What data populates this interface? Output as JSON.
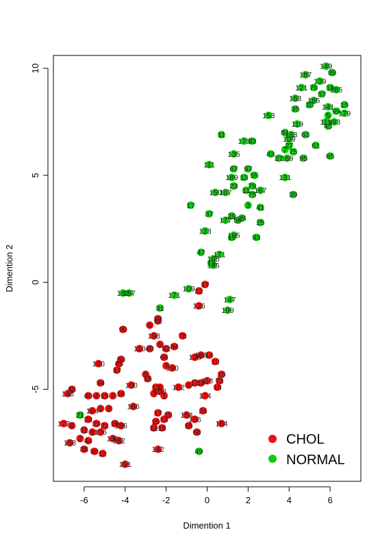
{
  "chart_data": {
    "type": "scatter",
    "title": "",
    "xlabel": "Dimention 1",
    "ylabel": "Dimention 2",
    "xlim": [
      -7.5,
      7.5
    ],
    "ylim": [
      -9.3,
      10.6
    ],
    "xticks": [
      -6,
      -4,
      -2,
      0,
      2,
      4,
      6
    ],
    "yticks": [
      -5,
      0,
      5,
      10
    ],
    "grid": false,
    "legend_position": "bottom-right",
    "series": [
      {
        "name": "CHOL",
        "color": "#ee1111",
        "points": [
          {
            "x": -6.6,
            "y": -5.0,
            "label": "45"
          },
          {
            "x": -6.8,
            "y": -5.2,
            "label": "148"
          },
          {
            "x": -5.8,
            "y": -5.3,
            "label": "40"
          },
          {
            "x": -5.4,
            "y": -5.3,
            "label": "4"
          },
          {
            "x": -5.2,
            "y": -4.7,
            "label": "94"
          },
          {
            "x": -5.0,
            "y": -5.3,
            "label": "15"
          },
          {
            "x": -4.6,
            "y": -5.3,
            "label": "2"
          },
          {
            "x": -4.2,
            "y": -5.2,
            "label": "16"
          },
          {
            "x": -3.7,
            "y": -4.8,
            "label": "100"
          },
          {
            "x": -3.0,
            "y": -4.3,
            "label": "5"
          },
          {
            "x": -2.9,
            "y": -4.5,
            "label": "15"
          },
          {
            "x": -5.6,
            "y": -6.0,
            "label": "104"
          },
          {
            "x": -5.2,
            "y": -5.9,
            "label": "1"
          },
          {
            "x": -4.8,
            "y": -5.9,
            "label": "3"
          },
          {
            "x": -6.2,
            "y": -6.2,
            "label": "21"
          },
          {
            "x": -5.8,
            "y": -6.4,
            "label": "28"
          },
          {
            "x": -5.4,
            "y": -6.6,
            "label": "29"
          },
          {
            "x": -5.0,
            "y": -6.7,
            "label": "21"
          },
          {
            "x": -4.5,
            "y": -6.6,
            "label": "16"
          },
          {
            "x": -4.2,
            "y": -6.7,
            "label": "186"
          },
          {
            "x": -7.0,
            "y": -6.6,
            "label": "172"
          },
          {
            "x": -6.6,
            "y": -6.7,
            "label": "8"
          },
          {
            "x": -6.0,
            "y": -6.9,
            "label": "11"
          },
          {
            "x": -5.6,
            "y": -7.0,
            "label": "8"
          },
          {
            "x": -5.2,
            "y": -7.0,
            "label": "176"
          },
          {
            "x": -6.7,
            "y": -7.5,
            "label": "158"
          },
          {
            "x": -6.2,
            "y": -7.3,
            "label": "2"
          },
          {
            "x": -5.8,
            "y": -7.4,
            "label": "44"
          },
          {
            "x": -6.0,
            "y": -7.8,
            "label": "38"
          },
          {
            "x": -5.5,
            "y": -7.9,
            "label": "98"
          },
          {
            "x": -5.1,
            "y": -8.0,
            "label": "12"
          },
          {
            "x": -4.3,
            "y": -7.4,
            "label": "132"
          },
          {
            "x": -4.6,
            "y": -7.3,
            "label": "130"
          },
          {
            "x": -4.0,
            "y": -8.5,
            "label": "191"
          },
          {
            "x": -3.6,
            "y": -5.8,
            "label": "166"
          },
          {
            "x": -2.6,
            "y": -5.2,
            "label": "7"
          },
          {
            "x": -2.3,
            "y": -5.1,
            "label": "108"
          },
          {
            "x": -2.1,
            "y": -5.3,
            "label": "1"
          },
          {
            "x": -2.5,
            "y": -4.9,
            "label": "13"
          },
          {
            "x": -2.3,
            "y": -4.9,
            "label": "5"
          },
          {
            "x": -1.4,
            "y": -4.9,
            "label": "182"
          },
          {
            "x": -0.9,
            "y": -4.8,
            "label": "8"
          },
          {
            "x": -0.6,
            "y": -4.7,
            "label": "17"
          },
          {
            "x": -0.3,
            "y": -4.7,
            "label": "18"
          },
          {
            "x": 0.0,
            "y": -4.6,
            "label": "118"
          },
          {
            "x": 0.6,
            "y": -4.6,
            "label": "73"
          },
          {
            "x": 0.7,
            "y": -4.3,
            "label": "15"
          },
          {
            "x": 0.5,
            "y": -4.9,
            "label": "10"
          },
          {
            "x": -0.1,
            "y": -5.3,
            "label": "174"
          },
          {
            "x": -5.3,
            "y": -3.8,
            "label": "180"
          },
          {
            "x": -4.2,
            "y": -3.6,
            "label": "50"
          },
          {
            "x": -4.3,
            "y": -3.8,
            "label": "45"
          },
          {
            "x": -4.4,
            "y": -4.1,
            "label": "17"
          },
          {
            "x": -3.3,
            "y": -3.1,
            "label": "110"
          },
          {
            "x": -2.8,
            "y": -3.1,
            "label": "40"
          },
          {
            "x": -2.3,
            "y": -2.9,
            "label": "5"
          },
          {
            "x": -2.0,
            "y": -3.1,
            "label": "82"
          },
          {
            "x": -1.6,
            "y": -3.0,
            "label": "84"
          },
          {
            "x": -2.1,
            "y": -3.5,
            "label": "66"
          },
          {
            "x": -2.0,
            "y": -3.9,
            "label": "7"
          },
          {
            "x": -1.7,
            "y": -4.0,
            "label": "190"
          },
          {
            "x": -1.2,
            "y": -2.5,
            "label": "78"
          },
          {
            "x": -0.3,
            "y": -3.4,
            "label": "188"
          },
          {
            "x": -0.6,
            "y": -3.5,
            "label": "128"
          },
          {
            "x": 0.1,
            "y": -3.4,
            "label": "14"
          },
          {
            "x": 0.4,
            "y": -3.7,
            "label": "12"
          },
          {
            "x": -4.1,
            "y": -2.2,
            "label": "90"
          },
          {
            "x": -2.8,
            "y": -2.0,
            "label": "6"
          },
          {
            "x": -2.4,
            "y": -1.7,
            "label": "32"
          },
          {
            "x": -2.6,
            "y": -2.5,
            "label": "198"
          },
          {
            "x": -2.4,
            "y": -1.8,
            "label": "12"
          },
          {
            "x": -0.4,
            "y": -1.1,
            "label": "126"
          },
          {
            "x": -0.1,
            "y": -0.1,
            "label": "17"
          },
          {
            "x": -0.4,
            "y": -0.4,
            "label": "12"
          },
          {
            "x": -2.4,
            "y": -6.1,
            "label": "17"
          },
          {
            "x": -2.5,
            "y": -6.5,
            "label": "19"
          },
          {
            "x": -2.1,
            "y": -6.4,
            "label": "13"
          },
          {
            "x": -1.9,
            "y": -6.2,
            "label": "15"
          },
          {
            "x": -2.6,
            "y": -6.8,
            "label": "12"
          },
          {
            "x": -2.2,
            "y": -6.8,
            "label": "18"
          },
          {
            "x": -1.0,
            "y": -6.2,
            "label": "154"
          },
          {
            "x": -0.6,
            "y": -6.4,
            "label": "106"
          },
          {
            "x": -0.2,
            "y": -6.0,
            "label": "24"
          },
          {
            "x": -0.9,
            "y": -6.7,
            "label": "16"
          },
          {
            "x": -0.5,
            "y": -7.0,
            "label": "68"
          },
          {
            "x": 0.7,
            "y": -6.6,
            "label": "164"
          },
          {
            "x": -2.4,
            "y": -7.8,
            "label": "142"
          }
        ]
      },
      {
        "name": "NORMAL",
        "color": "#11cc11",
        "points": [
          {
            "x": 5.8,
            "y": 10.1,
            "label": "149"
          },
          {
            "x": 6.1,
            "y": 9.8,
            "label": "89"
          },
          {
            "x": 4.8,
            "y": 9.7,
            "label": "187"
          },
          {
            "x": 5.5,
            "y": 9.4,
            "label": "139"
          },
          {
            "x": 4.6,
            "y": 9.1,
            "label": "121"
          },
          {
            "x": 5.2,
            "y": 9.1,
            "label": "79"
          },
          {
            "x": 6.0,
            "y": 9.1,
            "label": "18"
          },
          {
            "x": 6.3,
            "y": 9.0,
            "label": "185"
          },
          {
            "x": 5.6,
            "y": 8.8,
            "label": "57"
          },
          {
            "x": 4.3,
            "y": 8.6,
            "label": "163"
          },
          {
            "x": 5.2,
            "y": 8.5,
            "label": "185"
          },
          {
            "x": 5.0,
            "y": 8.3,
            "label": "10"
          },
          {
            "x": 5.9,
            "y": 8.2,
            "label": "141"
          },
          {
            "x": 6.7,
            "y": 8.3,
            "label": "19"
          },
          {
            "x": 6.3,
            "y": 8.0,
            "label": "99"
          },
          {
            "x": 6.7,
            "y": 7.9,
            "label": "179"
          },
          {
            "x": 4.3,
            "y": 8.1,
            "label": "35"
          },
          {
            "x": 5.9,
            "y": 7.8,
            "label": "5"
          },
          {
            "x": 5.8,
            "y": 7.5,
            "label": "119"
          },
          {
            "x": 6.2,
            "y": 7.5,
            "label": "193"
          },
          {
            "x": 5.9,
            "y": 7.3,
            "label": "45"
          },
          {
            "x": 3.0,
            "y": 7.8,
            "label": "153"
          },
          {
            "x": 4.4,
            "y": 7.4,
            "label": "119"
          },
          {
            "x": 3.8,
            "y": 7.0,
            "label": "81"
          },
          {
            "x": 4.1,
            "y": 6.9,
            "label": "183"
          },
          {
            "x": 4.8,
            "y": 6.9,
            "label": "63"
          },
          {
            "x": 4.0,
            "y": 6.7,
            "label": "109"
          },
          {
            "x": 4.0,
            "y": 6.4,
            "label": "27"
          },
          {
            "x": 5.3,
            "y": 6.4,
            "label": "61"
          },
          {
            "x": 3.8,
            "y": 6.2,
            "label": "7"
          },
          {
            "x": 4.2,
            "y": 6.1,
            "label": "75"
          },
          {
            "x": 3.1,
            "y": 6.0,
            "label": "43"
          },
          {
            "x": 3.5,
            "y": 5.8,
            "label": "27"
          },
          {
            "x": 3.9,
            "y": 5.8,
            "label": "169"
          },
          {
            "x": 4.7,
            "y": 5.8,
            "label": "95"
          },
          {
            "x": 6.0,
            "y": 5.9,
            "label": "65"
          },
          {
            "x": 0.7,
            "y": 6.9,
            "label": "11"
          },
          {
            "x": 1.8,
            "y": 6.6,
            "label": "173"
          },
          {
            "x": 2.2,
            "y": 6.6,
            "label": "83"
          },
          {
            "x": 1.3,
            "y": 6.0,
            "label": "135"
          },
          {
            "x": 0.1,
            "y": 5.5,
            "label": "111"
          },
          {
            "x": 1.3,
            "y": 5.3,
            "label": "67"
          },
          {
            "x": 2.0,
            "y": 5.3,
            "label": "97"
          },
          {
            "x": 1.2,
            "y": 4.9,
            "label": "189"
          },
          {
            "x": 1.8,
            "y": 4.9,
            "label": "13"
          },
          {
            "x": 2.3,
            "y": 5.0,
            "label": "55"
          },
          {
            "x": 2.2,
            "y": 4.5,
            "label": "79"
          },
          {
            "x": 1.3,
            "y": 4.5,
            "label": "23"
          },
          {
            "x": 1.9,
            "y": 4.3,
            "label": "11"
          },
          {
            "x": 2.6,
            "y": 4.3,
            "label": "167"
          },
          {
            "x": 2.2,
            "y": 4.1,
            "label": "75"
          },
          {
            "x": 3.8,
            "y": 4.9,
            "label": "131"
          },
          {
            "x": 0.4,
            "y": 4.2,
            "label": "150"
          },
          {
            "x": 0.9,
            "y": 4.2,
            "label": "107"
          },
          {
            "x": 4.2,
            "y": 4.1,
            "label": "39"
          },
          {
            "x": -0.8,
            "y": 3.6,
            "label": "17"
          },
          {
            "x": 2.0,
            "y": 3.6,
            "label": "3"
          },
          {
            "x": 2.6,
            "y": 3.5,
            "label": "41"
          },
          {
            "x": 0.1,
            "y": 3.2,
            "label": "37"
          },
          {
            "x": 1.2,
            "y": 3.1,
            "label": "29"
          },
          {
            "x": 1.7,
            "y": 3.0,
            "label": "25"
          },
          {
            "x": 0.9,
            "y": 2.9,
            "label": "177"
          },
          {
            "x": 1.5,
            "y": 2.9,
            "label": "59"
          },
          {
            "x": 2.6,
            "y": 2.8,
            "label": "25"
          },
          {
            "x": -0.1,
            "y": 2.4,
            "label": "123"
          },
          {
            "x": 1.3,
            "y": 2.2,
            "label": "105"
          },
          {
            "x": 1.2,
            "y": 2.1,
            "label": "13"
          },
          {
            "x": 2.4,
            "y": 2.1,
            "label": "93"
          },
          {
            "x": -0.3,
            "y": 1.4,
            "label": "47"
          },
          {
            "x": 0.6,
            "y": 1.3,
            "label": "171"
          },
          {
            "x": 0.3,
            "y": 1.1,
            "label": "165"
          },
          {
            "x": 0.2,
            "y": 0.9,
            "label": "19"
          },
          {
            "x": 0.3,
            "y": 0.8,
            "label": "145"
          },
          {
            "x": -4.1,
            "y": -0.5,
            "label": "162"
          },
          {
            "x": -3.8,
            "y": -0.5,
            "label": "197"
          },
          {
            "x": -1.6,
            "y": -0.6,
            "label": "171"
          },
          {
            "x": -0.9,
            "y": -0.3,
            "label": "109"
          },
          {
            "x": 1.1,
            "y": -0.8,
            "label": "147"
          },
          {
            "x": -2.3,
            "y": -1.2,
            "label": "31"
          },
          {
            "x": 1.0,
            "y": -1.3,
            "label": "199"
          },
          {
            "x": -6.2,
            "y": -6.2,
            "label": "21"
          },
          {
            "x": -0.4,
            "y": -7.9,
            "label": "49"
          }
        ]
      }
    ]
  }
}
